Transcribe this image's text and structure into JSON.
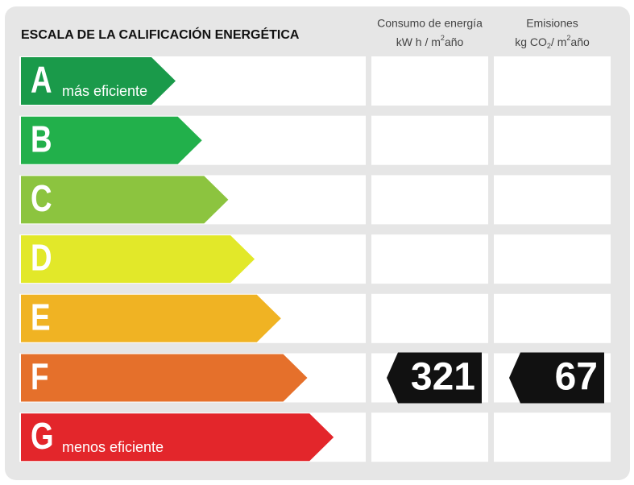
{
  "title": "ESCALA DE LA CALIFICACIÓN ENERGÉTICA",
  "columns": [
    {
      "title": "Consumo de energía",
      "unit": [
        "kW h / m",
        "2",
        "año"
      ]
    },
    {
      "title": "Emisiones",
      "unit": [
        "kg CO",
        "2",
        "/ m",
        "2",
        "año"
      ]
    }
  ],
  "ratings": [
    {
      "letter": "A",
      "label": "más eficiente",
      "color": "#1a9a4a"
    },
    {
      "letter": "B",
      "color": "#22b04b"
    },
    {
      "letter": "C",
      "color": "#8cc43f"
    },
    {
      "letter": "D",
      "color": "#e2e829"
    },
    {
      "letter": "E",
      "color": "#f0b323"
    },
    {
      "letter": "F",
      "color": "#e5702b",
      "values": [
        321,
        67
      ]
    },
    {
      "letter": "G",
      "label": "menos eficiente",
      "color": "#e3262b"
    }
  ]
}
